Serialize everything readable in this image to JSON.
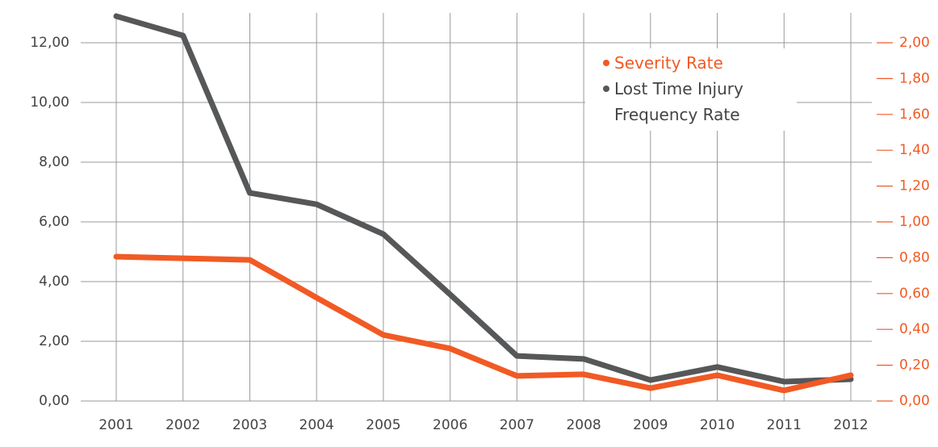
{
  "chart_data": {
    "type": "line",
    "categories": [
      "2001",
      "2002",
      "2003",
      "2004",
      "2005",
      "2006",
      "2007",
      "2008",
      "2009",
      "2010",
      "2011",
      "2012"
    ],
    "series": [
      {
        "name": "Lost Time Injury Frequency Rate",
        "color": "#555759",
        "values": [
          12.89,
          12.24,
          6.97,
          6.59,
          5.59,
          3.57,
          1.51,
          1.41,
          0.7,
          1.14,
          0.65,
          0.73
        ]
      },
      {
        "name": "Severity Rate",
        "color": "#f15a24",
        "axis": "y2",
        "values": [
          0.806,
          0.797,
          0.788,
          0.577,
          0.369,
          0.293,
          0.14,
          0.149,
          0.072,
          0.144,
          0.059,
          0.144
        ]
      }
    ],
    "ylim": [
      0,
      13
    ],
    "yticks": [
      {
        "value": 0,
        "label": "0,00"
      },
      {
        "value": 2,
        "label": "2,00"
      },
      {
        "value": 4,
        "label": "4,00"
      },
      {
        "value": 6,
        "label": "6,00"
      },
      {
        "value": 8,
        "label": "8,00"
      },
      {
        "value": 10,
        "label": "10,00"
      },
      {
        "value": 12,
        "label": "12,00"
      }
    ],
    "y2lim": [
      0,
      2.1667
    ],
    "y2ticks": [
      {
        "value": 0,
        "label": "0,00"
      },
      {
        "value": 0.2,
        "label": "0,20"
      },
      {
        "value": 0.4,
        "label": "0,40"
      },
      {
        "value": 0.6,
        "label": "0,60"
      },
      {
        "value": 0.8,
        "label": "0,80"
      },
      {
        "value": 1.0,
        "label": "1,00"
      },
      {
        "value": 1.2,
        "label": "1,20"
      },
      {
        "value": 1.4,
        "label": "1,40"
      },
      {
        "value": 1.6,
        "label": "1,60"
      },
      {
        "value": 1.8,
        "label": "1,80"
      },
      {
        "value": 2.0,
        "label": "2,00"
      }
    ],
    "grid": true
  }
}
